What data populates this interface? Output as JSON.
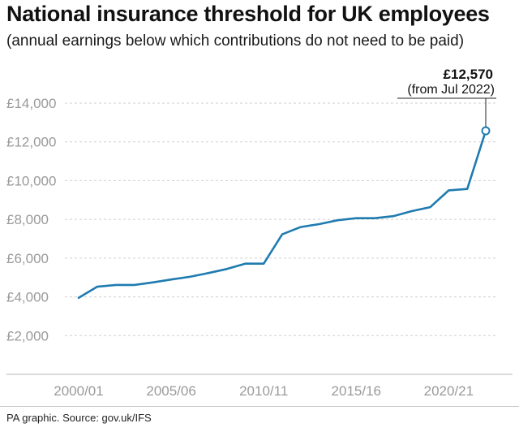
{
  "header": {
    "title": "National insurance threshold for UK employees",
    "subtitle": "(annual earnings below which contributions do not need to be paid)"
  },
  "footer": {
    "source": "PA graphic. Source: gov.uk/IFS"
  },
  "colors": {
    "line": "#1f7bb0",
    "grid": "#cfcfcf",
    "tick_text": "#9a9a9a"
  },
  "chart_data": {
    "type": "line",
    "title": "National insurance threshold for UK employees",
    "subtitle": "(annual earnings below which contributions do not need to be paid)",
    "xlabel": "",
    "ylabel": "",
    "ylim": [
      0,
      14000
    ],
    "y_ticks": [
      2000,
      4000,
      6000,
      8000,
      10000,
      12000,
      14000
    ],
    "y_tick_labels": [
      "£2,000",
      "£4,000",
      "£6,000",
      "£8,000",
      "£10,000",
      "£12,000",
      "£14,000"
    ],
    "x_tick_labels": [
      "2000/01",
      "2005/06",
      "2010/11",
      "2015/16",
      "2020/21"
    ],
    "x_ticks": [
      2000,
      2005,
      2010,
      2015,
      2020
    ],
    "grid": true,
    "legend": "none",
    "series": [
      {
        "x": [
          2000,
          2001,
          2002,
          2003,
          2004,
          2005,
          2006,
          2007,
          2008,
          2009,
          2010,
          2011,
          2012,
          2013,
          2014,
          2015,
          2016,
          2017,
          2018,
          2019,
          2020,
          2021,
          2022
        ],
        "values": [
          3952,
          4524,
          4616,
          4615,
          4745,
          4895,
          5035,
          5225,
          5435,
          5715,
          5715,
          7225,
          7605,
          7755,
          7956,
          8060,
          8060,
          8164,
          8424,
          8632,
          9500,
          9568,
          12570
        ]
      }
    ],
    "annotation": {
      "value": "£12,570",
      "note": "(from Jul 2022)"
    }
  }
}
